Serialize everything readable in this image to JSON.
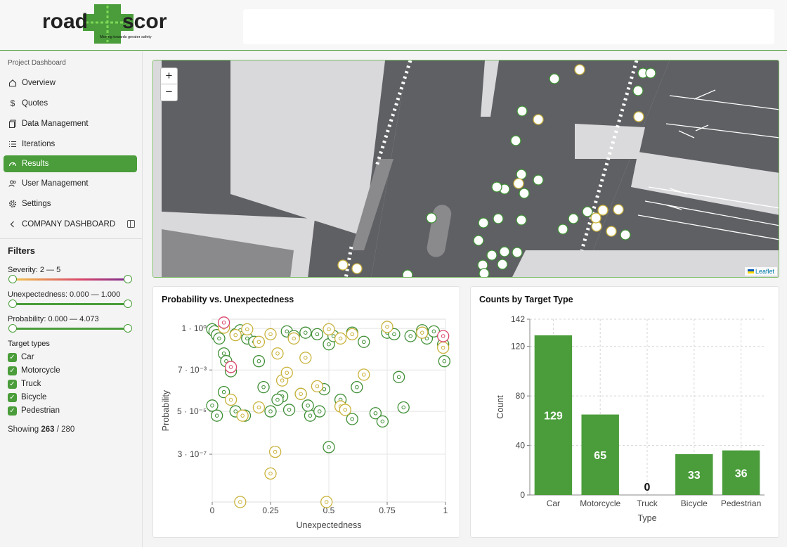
{
  "header": {
    "logo_text": "road",
    "logo_text2": "scor",
    "logo_tagline": "Moving towards greater safety"
  },
  "sidebar": {
    "section_label": "Project Dashboard",
    "items": [
      {
        "label": "Overview",
        "icon": "home-icon"
      },
      {
        "label": "Quotes",
        "icon": "dollar-icon"
      },
      {
        "label": "Data Management",
        "icon": "files-icon"
      },
      {
        "label": "Iterations",
        "icon": "list-icon"
      },
      {
        "label": "Results",
        "icon": "gauge-icon",
        "active": true
      },
      {
        "label": "User Management",
        "icon": "users-icon"
      },
      {
        "label": "Settings",
        "icon": "gear-icon"
      }
    ],
    "company_label": "COMPANY DASHBOARD"
  },
  "filters": {
    "title": "Filters",
    "severity_label": "Severity: 2 — 5",
    "unexpectedness_label": "Unexpectedness: 0.000 — 1.000",
    "probability_label": "Probability: 0.000 — 4.073",
    "target_types_label": "Target types",
    "target_types": [
      "Car",
      "Motorcycle",
      "Truck",
      "Bicycle",
      "Pedestrian"
    ],
    "showing_count": "263",
    "showing_total": "/ 280",
    "showing_prefix": "Showing"
  },
  "map": {
    "zoom_in": "+",
    "zoom_out": "−",
    "attribution": "Leaflet"
  },
  "colors": {
    "accent": "#4a9d3a",
    "car": "#3f8f36",
    "bicycle": "#c9b23a",
    "pedestrian": "#d9456b"
  },
  "chart_data": [
    {
      "type": "scatter",
      "title": "Probability vs. Unexpectedness",
      "xlabel": "Unexpectedness",
      "ylabel": "Probability",
      "xlim": [
        0,
        1
      ],
      "x_ticks": [
        "0",
        "0.25",
        "0.5",
        "0.75",
        "1"
      ],
      "y_ticks": [
        "1 · 10⁰",
        "7 · 10⁻³",
        "5 · 10⁻⁵",
        "3 · 10⁻⁷"
      ],
      "y_scale": "log",
      "series": [
        {
          "name": "Car",
          "points": [
            [
              0.0,
              0.9
            ],
            [
              0.01,
              0.7
            ],
            [
              0.02,
              0.45
            ],
            [
              0.03,
              0.3
            ],
            [
              0.05,
              0.05
            ],
            [
              0.06,
              0.02
            ],
            [
              0.08,
              0.006
            ],
            [
              0.1,
              0.5
            ],
            [
              0.12,
              0.8
            ],
            [
              0.15,
              0.3
            ],
            [
              0.18,
              0.2
            ],
            [
              0.2,
              0.02
            ],
            [
              0.22,
              0.0009
            ],
            [
              0.25,
              5e-05
            ],
            [
              0.3,
              0.0003
            ],
            [
              0.32,
              0.7
            ],
            [
              0.35,
              0.4
            ],
            [
              0.38,
              0.0004
            ],
            [
              0.4,
              0.6
            ],
            [
              0.42,
              3e-05
            ],
            [
              0.45,
              0.5
            ],
            [
              0.48,
              0.0007
            ],
            [
              0.5,
              0.15
            ],
            [
              0.52,
              0.4
            ],
            [
              0.55,
              0.0002
            ],
            [
              0.6,
              0.6
            ],
            [
              0.62,
              0.0009
            ],
            [
              0.65,
              0.2
            ],
            [
              0.7,
              4e-05
            ],
            [
              0.75,
              0.6
            ],
            [
              0.78,
              0.5
            ],
            [
              0.8,
              0.003
            ],
            [
              0.82,
              8e-05
            ],
            [
              0.85,
              0.4
            ],
            [
              0.9,
              0.8
            ],
            [
              0.92,
              0.3
            ],
            [
              0.95,
              0.7
            ],
            [
              0.99,
              0.15
            ],
            [
              0.995,
              0.02
            ],
            [
              0.0,
              0.0001
            ],
            [
              0.02,
              3e-05
            ],
            [
              0.05,
              0.0005
            ],
            [
              0.1,
              5e-05
            ],
            [
              0.14,
              3e-05
            ],
            [
              0.28,
              0.0002
            ],
            [
              0.33,
              6e-05
            ],
            [
              0.41,
              0.0001
            ],
            [
              0.46,
              5e-05
            ],
            [
              0.5,
              7e-07
            ],
            [
              0.6,
              2e-05
            ],
            [
              0.73,
              1.5e-05
            ]
          ]
        },
        {
          "name": "Bicycle",
          "points": [
            [
              0.05,
              1.1
            ],
            [
              0.1,
              0.45
            ],
            [
              0.15,
              0.9
            ],
            [
              0.2,
              0.2
            ],
            [
              0.25,
              0.5
            ],
            [
              0.28,
              0.05
            ],
            [
              0.3,
              0.002
            ],
            [
              0.35,
              0.3
            ],
            [
              0.4,
              0.03
            ],
            [
              0.45,
              0.001
            ],
            [
              0.5,
              0.9
            ],
            [
              0.55,
              0.3
            ],
            [
              0.6,
              0.5
            ],
            [
              0.65,
              0.004
            ],
            [
              0.75,
              1.2
            ],
            [
              0.9,
              0.6
            ],
            [
              0.99,
              0.1
            ],
            [
              0.08,
              0.0002
            ],
            [
              0.13,
              3e-05
            ],
            [
              0.2,
              8e-05
            ],
            [
              0.27,
              4e-07
            ],
            [
              0.25,
              3e-08
            ],
            [
              0.12,
              1e-09
            ],
            [
              0.49,
              1e-09
            ],
            [
              0.55,
              9e-05
            ],
            [
              0.57,
              6e-05
            ],
            [
              0.38,
              0.0004
            ],
            [
              0.32,
              0.005
            ]
          ]
        },
        {
          "name": "Pedestrian",
          "points": [
            [
              0.05,
              2.0
            ],
            [
              0.08,
              0.01
            ],
            [
              0.99,
              0.4
            ]
          ]
        }
      ]
    },
    {
      "type": "bar",
      "title": "Counts by Target Type",
      "xlabel": "Type",
      "ylabel": "Count",
      "categories": [
        "Car",
        "Motorcycle",
        "Truck",
        "Bicycle",
        "Pedestrian"
      ],
      "values": [
        129,
        65,
        0,
        33,
        36
      ],
      "ylim": [
        0,
        142
      ],
      "y_ticks": [
        "0",
        "40",
        "80",
        "120",
        "142"
      ]
    }
  ]
}
